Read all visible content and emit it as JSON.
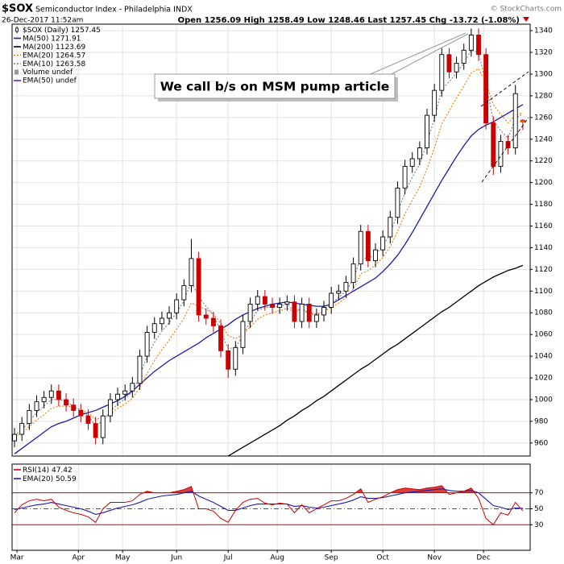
{
  "chart_data": {
    "type": "candlestick",
    "title": "$SOX",
    "subtitle": "Semiconductor Index - Philadelphia INDX",
    "date": "26-Dec-2017 11:52am",
    "credit": "© StockCharts.com",
    "quote_labels": {
      "open": "Open",
      "high": "High",
      "low": "Low",
      "last": "Last",
      "change": "Chg"
    },
    "change": -13.72,
    "change_pct": {
      "value": -1.08,
      "label": "(-1.08%)"
    },
    "price_name": "$SOX (Daily)",
    "annotation": "We call b/s on MSM pump article",
    "up_color": "#000000",
    "down_color": "#cc0000",
    "last_color": "#f5b800",
    "grid": true,
    "xlim": [
      -1,
      210
    ],
    "xticks": [
      {
        "value": 1,
        "label": "Mar"
      },
      {
        "value": 26,
        "label": "Apr"
      },
      {
        "value": 44,
        "label": "May"
      },
      {
        "value": 66,
        "label": "Jun"
      },
      {
        "value": 87,
        "label": "Jul"
      },
      {
        "value": 107,
        "label": "Aug"
      },
      {
        "value": 129,
        "label": "Sep"
      },
      {
        "value": 150,
        "label": "Oct"
      },
      {
        "value": 171,
        "label": "Nov"
      },
      {
        "value": 191,
        "label": "Dec"
      }
    ],
    "ylim": [
      948,
      1346
    ],
    "yticks": [
      960,
      980,
      1000,
      1020,
      1040,
      1060,
      1080,
      1100,
      1120,
      1140,
      1160,
      1180,
      1200,
      1220,
      1240,
      1260,
      1280,
      1300,
      1320,
      1340
    ],
    "x": [
      0,
      3,
      6,
      9,
      12,
      15,
      18,
      21,
      24,
      27,
      30,
      33,
      36,
      39,
      42,
      45,
      48,
      51,
      54,
      57,
      60,
      63,
      66,
      69,
      72,
      75,
      78,
      81,
      84,
      87,
      90,
      93,
      96,
      99,
      102,
      105,
      108,
      111,
      114,
      117,
      120,
      123,
      126,
      129,
      132,
      135,
      138,
      141,
      144,
      147,
      150,
      153,
      156,
      159,
      162,
      165,
      168,
      171,
      174,
      177,
      180,
      183,
      186,
      189,
      192,
      195,
      198,
      201,
      204,
      207
    ],
    "open": [
      962,
      968,
      978,
      990,
      998,
      1002,
      1008,
      1000,
      995,
      990,
      985,
      978,
      965,
      985,
      1000,
      1005,
      1008,
      1015,
      1040,
      1062,
      1070,
      1075,
      1080,
      1092,
      1105,
      1130,
      1078,
      1075,
      1068,
      1045,
      1028,
      1048,
      1072,
      1088,
      1095,
      1088,
      1085,
      1088,
      1090,
      1072,
      1088,
      1072,
      1078,
      1085,
      1098,
      1100,
      1108,
      1125,
      1155,
      1128,
      1138,
      1150,
      1168,
      1195,
      1215,
      1222,
      1232,
      1262,
      1285,
      1318,
      1302,
      1310,
      1322,
      1336,
      1318,
      1255,
      1215,
      1238,
      1232,
      1256.09
    ],
    "high": [
      974,
      984,
      996,
      1004,
      1008,
      1014,
      1014,
      1006,
      1001,
      996,
      991,
      984,
      991,
      1006,
      1011,
      1014,
      1021,
      1046,
      1068,
      1076,
      1081,
      1086,
      1098,
      1111,
      1148,
      1136,
      1084,
      1081,
      1074,
      1051,
      1054,
      1078,
      1094,
      1101,
      1101,
      1094,
      1094,
      1096,
      1096,
      1094,
      1094,
      1084,
      1091,
      1104,
      1106,
      1114,
      1131,
      1161,
      1161,
      1144,
      1156,
      1174,
      1201,
      1221,
      1228,
      1238,
      1268,
      1291,
      1324,
      1324,
      1316,
      1328,
      1342,
      1342,
      1324,
      1261,
      1244,
      1244,
      1290,
      1258.49
    ],
    "low": [
      956,
      962,
      972,
      984,
      992,
      996,
      994,
      989,
      984,
      979,
      972,
      959,
      959,
      979,
      994,
      999,
      1002,
      1009,
      1034,
      1056,
      1064,
      1069,
      1074,
      1086,
      1099,
      1072,
      1069,
      1062,
      1039,
      1020,
      1022,
      1042,
      1066,
      1082,
      1082,
      1079,
      1079,
      1082,
      1066,
      1066,
      1066,
      1066,
      1072,
      1079,
      1092,
      1094,
      1102,
      1119,
      1122,
      1122,
      1132,
      1144,
      1162,
      1189,
      1209,
      1216,
      1226,
      1256,
      1279,
      1296,
      1296,
      1304,
      1316,
      1312,
      1249,
      1207,
      1209,
      1226,
      1226,
      1248.46
    ],
    "close": [
      968,
      978,
      990,
      998,
      1002,
      1008,
      1000,
      995,
      990,
      985,
      978,
      965,
      985,
      1000,
      1005,
      1008,
      1015,
      1040,
      1062,
      1070,
      1075,
      1080,
      1092,
      1105,
      1130,
      1078,
      1075,
      1068,
      1045,
      1028,
      1048,
      1072,
      1088,
      1095,
      1088,
      1085,
      1088,
      1090,
      1072,
      1088,
      1072,
      1078,
      1085,
      1098,
      1100,
      1108,
      1125,
      1155,
      1128,
      1138,
      1150,
      1168,
      1195,
      1215,
      1222,
      1232,
      1262,
      1285,
      1318,
      1302,
      1310,
      1322,
      1336,
      1318,
      1255,
      1215,
      1238,
      1232,
      1282,
      1257.45
    ],
    "series": [
      {
        "name": "MA(50)",
        "color": "#1c1ca8",
        "style": "solid",
        "values": [
          950,
          955,
          960,
          965,
          970,
          975,
          978,
          980,
          983,
          986,
          988,
          990,
          993,
          996,
          999,
          1003,
          1008,
          1014,
          1020,
          1026,
          1031,
          1036,
          1040,
          1044,
          1048,
          1052,
          1057,
          1061,
          1065,
          1069,
          1074,
          1078,
          1081,
          1084,
          1086,
          1088,
          1089,
          1090,
          1089,
          1088,
          1087,
          1086,
          1086,
          1088,
          1092,
          1096,
          1100,
          1104,
          1108,
          1112,
          1118,
          1125,
          1133,
          1143,
          1154,
          1166,
          1178,
          1190,
          1202,
          1213,
          1224,
          1234,
          1243,
          1249,
          1253,
          1256,
          1260,
          1264,
          1268,
          1271.91
        ]
      },
      {
        "name": "MA(200)",
        "color": "#000000",
        "style": "solid",
        "values": [
          null,
          null,
          null,
          null,
          null,
          null,
          null,
          null,
          null,
          null,
          null,
          null,
          null,
          null,
          null,
          null,
          null,
          null,
          null,
          null,
          null,
          null,
          null,
          null,
          null,
          null,
          null,
          null,
          null,
          948,
          952,
          956,
          960,
          964,
          968,
          972,
          976,
          981,
          985,
          990,
          994,
          999,
          1003,
          1008,
          1013,
          1018,
          1023,
          1028,
          1032,
          1037,
          1042,
          1047,
          1051,
          1056,
          1061,
          1066,
          1071,
          1076,
          1081,
          1085,
          1090,
          1095,
          1100,
          1105,
          1109,
          1113,
          1116,
          1119,
          1121,
          1123.69
        ]
      },
      {
        "name": "EMA(20)",
        "color": "#f07800",
        "style": "dotted",
        "values": [
          966,
          969,
          975,
          981,
          986,
          992,
          994,
          994,
          993,
          991,
          988,
          982,
          983,
          987,
          992,
          996,
          1001,
          1011,
          1024,
          1036,
          1046,
          1055,
          1065,
          1075,
          1089,
          1086,
          1083,
          1079,
          1070,
          1059,
          1056,
          1060,
          1067,
          1074,
          1078,
          1080,
          1082,
          1084,
          1081,
          1083,
          1080,
          1079,
          1081,
          1085,
          1089,
          1094,
          1102,
          1116,
          1119,
          1124,
          1131,
          1141,
          1155,
          1171,
          1184,
          1196,
          1213,
          1232,
          1254,
          1266,
          1278,
          1289,
          1301,
          1305,
          1292,
          1272,
          1263,
          1255,
          1262,
          1264.57
        ]
      },
      {
        "name": "EMA(10)",
        "color": "#808080",
        "style": "dotted",
        "values": [
          967,
          972,
          980,
          988,
          994,
          1000,
          1000,
          998,
          994,
          990,
          985,
          976,
          980,
          989,
          996,
          1001,
          1007,
          1022,
          1040,
          1053,
          1063,
          1071,
          1080,
          1091,
          1109,
          1095,
          1086,
          1078,
          1063,
          1047,
          1048,
          1059,
          1072,
          1082,
          1085,
          1085,
          1086,
          1088,
          1081,
          1084,
          1079,
          1078,
          1081,
          1089,
          1094,
          1100,
          1111,
          1131,
          1130,
          1134,
          1141,
          1153,
          1172,
          1191,
          1205,
          1217,
          1237,
          1259,
          1286,
          1293,
          1301,
          1310,
          1322,
          1320,
          1291,
          1257,
          1248,
          1241,
          1259,
          1263.58
        ]
      }
    ],
    "legend_extra": [
      {
        "name": "Volume undef",
        "color": "#999999"
      },
      {
        "name": "EMA(50) undef",
        "color": "#6a1fc2"
      }
    ],
    "rsi": {
      "name": "RSI(14)",
      "color": "#cc0000",
      "values": [
        45,
        55,
        60,
        62,
        60,
        62,
        52,
        48,
        45,
        43,
        40,
        33,
        50,
        58,
        58,
        58,
        60,
        68,
        72,
        70,
        70,
        70,
        72,
        74,
        78,
        50,
        50,
        47,
        38,
        33,
        48,
        58,
        62,
        63,
        57,
        55,
        57,
        56,
        45,
        55,
        45,
        50,
        55,
        60,
        60,
        63,
        68,
        75,
        58,
        62,
        65,
        70,
        74,
        76,
        75,
        74,
        76,
        77,
        79,
        68,
        70,
        72,
        76,
        63,
        38,
        30,
        45,
        42,
        58,
        47.42
      ]
    },
    "rsi_ema": {
      "name": "EMA(20)",
      "color": "#1c1ca8",
      "values": [
        49,
        51,
        53,
        55,
        56,
        58,
        56,
        54,
        52,
        50,
        47,
        43,
        45,
        48,
        51,
        53,
        55,
        58,
        62,
        64,
        66,
        67,
        68,
        70,
        72,
        66,
        62,
        58,
        53,
        48,
        48,
        51,
        54,
        56,
        56,
        56,
        56,
        56,
        53,
        54,
        52,
        51,
        52,
        54,
        56,
        58,
        61,
        65,
        63,
        63,
        64,
        66,
        68,
        70,
        71,
        72,
        73,
        74,
        75,
        73,
        72,
        72,
        73,
        70,
        62,
        54,
        52,
        49,
        51,
        50.59
      ]
    },
    "rsi_ylim": [
      -2,
      106
    ],
    "rsi_yticks": [
      30,
      50,
      70
    ]
  }
}
